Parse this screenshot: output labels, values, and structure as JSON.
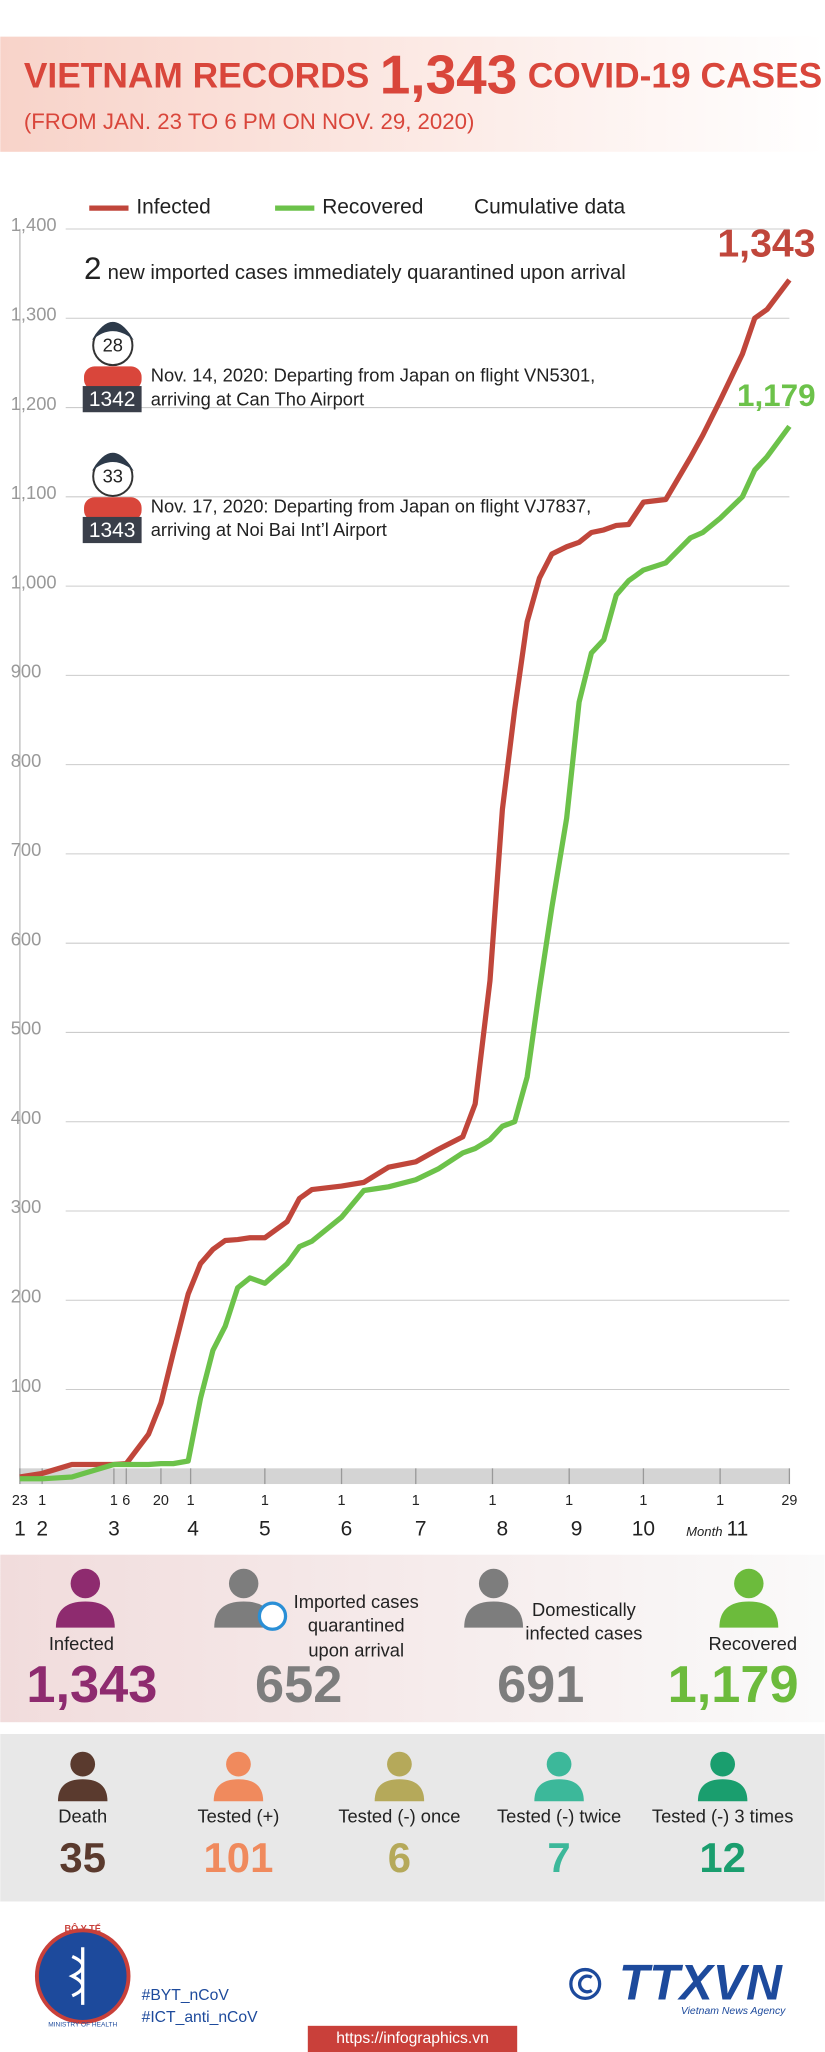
{
  "header": {
    "title_start": "VIETNAM RECORDS",
    "title_number": "1,343",
    "title_end": "COVID-19 CASES",
    "subtitle": "(FROM JAN. 23 TO 6 PM ON NOV. 29, 2020)"
  },
  "chart_data": {
    "type": "line",
    "legend_note": "Cumulative data",
    "x": [
      "2020-01-23",
      "2020-02-01",
      "2020-02-13",
      "2020-03-01",
      "2020-03-06",
      "2020-03-15",
      "2020-03-20",
      "2020-03-25",
      "2020-03-31",
      "2020-04-05",
      "2020-04-10",
      "2020-04-15",
      "2020-04-20",
      "2020-04-25",
      "2020-05-01",
      "2020-05-10",
      "2020-05-15",
      "2020-05-20",
      "2020-06-01",
      "2020-06-10",
      "2020-06-20",
      "2020-07-01",
      "2020-07-10",
      "2020-07-20",
      "2020-07-25",
      "2020-07-31",
      "2020-08-05",
      "2020-08-10",
      "2020-08-15",
      "2020-08-20",
      "2020-08-25",
      "2020-08-31",
      "2020-09-05",
      "2020-09-10",
      "2020-09-15",
      "2020-09-20",
      "2020-09-25",
      "2020-10-01",
      "2020-10-10",
      "2020-10-20",
      "2020-10-25",
      "2020-11-01",
      "2020-11-10",
      "2020-11-15",
      "2020-11-20",
      "2020-11-29"
    ],
    "series": [
      {
        "name": "Infected",
        "color": "#c0463b",
        "values": [
          2,
          6,
          16,
          16,
          17,
          50,
          85,
          141,
          207,
          241,
          257,
          267,
          268,
          270,
          270,
          288,
          314,
          324,
          328,
          332,
          349,
          355,
          369,
          383,
          420,
          558,
          750,
          862,
          960,
          1009,
          1036,
          1044,
          1049,
          1060,
          1063,
          1068,
          1069,
          1094,
          1097,
          1144,
          1169,
          1208,
          1260,
          1300,
          1310,
          1343
        ],
        "value_labels": [
          null,
          null,
          null,
          null,
          null,
          null,
          null,
          null,
          null,
          null,
          null,
          null,
          null,
          null,
          null,
          null,
          null,
          null,
          null,
          null,
          null,
          null,
          null,
          null,
          null,
          null,
          null,
          null,
          null,
          null,
          null,
          null,
          null,
          null,
          null,
          null,
          null,
          null,
          null,
          null,
          null,
          null,
          null,
          null,
          null,
          "1,343"
        ]
      },
      {
        "name": "Recovered",
        "color": "#6cc24a",
        "values": [
          0,
          0,
          2,
          16,
          16,
          16,
          17,
          17,
          20,
          90,
          144,
          171,
          214,
          225,
          219,
          241,
          260,
          266,
          293,
          323,
          327,
          335,
          347,
          365,
          370,
          380,
          395,
          400,
          450,
          548,
          640,
          740,
          870,
          925,
          940,
          990,
          1006,
          1018,
          1026,
          1054,
          1060,
          1076,
          1100,
          1130,
          1145,
          1179
        ],
        "value_labels": [
          null,
          null,
          null,
          null,
          null,
          null,
          null,
          null,
          null,
          null,
          null,
          null,
          null,
          null,
          null,
          null,
          null,
          null,
          null,
          null,
          null,
          null,
          null,
          null,
          null,
          null,
          null,
          null,
          null,
          null,
          null,
          null,
          null,
          null,
          null,
          null,
          null,
          null,
          null,
          null,
          null,
          null,
          null,
          null,
          null,
          "1,179"
        ]
      }
    ],
    "xlim": [
      "2020-01-23",
      "2020-11-29"
    ],
    "xticks": [
      {
        "value": "2020-01-23",
        "label": "23"
      },
      {
        "value": "2020-02-01",
        "label": "1"
      },
      {
        "value": "2020-03-01",
        "label": "1"
      },
      {
        "value": "2020-03-06",
        "label": "6"
      },
      {
        "value": "2020-03-20",
        "label": "20"
      },
      {
        "value": "2020-04-01",
        "label": "1"
      },
      {
        "value": "2020-05-01",
        "label": "1"
      },
      {
        "value": "2020-06-01",
        "label": "1"
      },
      {
        "value": "2020-07-01",
        "label": "1"
      },
      {
        "value": "2020-08-01",
        "label": "1"
      },
      {
        "value": "2020-09-01",
        "label": "1"
      },
      {
        "value": "2020-10-01",
        "label": "1"
      },
      {
        "value": "2020-11-01",
        "label": "1"
      },
      {
        "value": "2020-11-29",
        "label": "29"
      }
    ],
    "month_title": "Month",
    "month_ticks": [
      {
        "value": "2020-01-23",
        "label": "1"
      },
      {
        "value": "2020-02-01",
        "label": "2"
      },
      {
        "value": "2020-03-01",
        "label": "3"
      },
      {
        "value": "2020-04-02",
        "label": "4"
      },
      {
        "value": "2020-05-01",
        "label": "5"
      },
      {
        "value": "2020-06-03",
        "label": "6"
      },
      {
        "value": "2020-07-03",
        "label": "7"
      },
      {
        "value": "2020-08-05",
        "label": "8"
      },
      {
        "value": "2020-09-04",
        "label": "9"
      },
      {
        "value": "2020-10-01",
        "label": "10"
      },
      {
        "value": "2020-11-08",
        "label": "11"
      }
    ],
    "ylim": [
      0,
      1400
    ],
    "yticks": [
      100,
      200,
      300,
      400,
      500,
      600,
      700,
      800,
      900,
      {
        "value": 1000,
        "label": "1,000"
      },
      {
        "value": 1100,
        "label": "1,100"
      },
      {
        "value": 1200,
        "label": "1,200"
      },
      {
        "value": 1300,
        "label": "1,300"
      },
      {
        "value": 1400,
        "label": "1,400"
      }
    ],
    "grid": true
  },
  "note": {
    "count": "2",
    "text": "new imported cases immediately quarantined upon arrival",
    "cases": [
      {
        "patient": "28",
        "case": "1342",
        "lines": [
          "Nov. 14, 2020: Departing from Japan on flight VN5301,",
          "arriving at Can Tho Airport"
        ]
      },
      {
        "patient": "33",
        "case": "1343",
        "lines": [
          "Nov. 17, 2020: Departing from Japan on flight  VJ7837,",
          "arriving at Noi Bai Int’l Airport"
        ]
      }
    ]
  },
  "stats": {
    "row1": [
      {
        "label": [
          "Infected"
        ],
        "value": "1,343",
        "color": "#8e2b6f"
      },
      {
        "label": [
          "Imported cases",
          "quarantined",
          "upon arrival"
        ],
        "value": "652",
        "color": "#7d7d7d"
      },
      {
        "label": [
          "Domestically",
          "infected cases"
        ],
        "value": "691",
        "color": "#7d7d7d"
      },
      {
        "label": [
          "Recovered"
        ],
        "value": "1,179",
        "color": "#6cbb3c"
      }
    ],
    "row2": [
      {
        "label": "Death",
        "value": "35",
        "color": "#5a3a2e"
      },
      {
        "label": "Tested (+)",
        "value": "101",
        "color": "#f08a5d"
      },
      {
        "label": "Tested (-) once",
        "value": "6",
        "color": "#b5a95a"
      },
      {
        "label": "Tested (-) twice",
        "value": "7",
        "color": "#3cb89a"
      },
      {
        "label": "Tested (-) 3 times",
        "value": "12",
        "color": "#1a9e6e"
      }
    ]
  },
  "footer": {
    "logo_top": "BỘ Y TẾ",
    "logo_bottom": "MINISTRY OF HEALTH",
    "tags": [
      "#BYT_nCoV",
      "#ICT_anti_nCoV"
    ],
    "agency": "TTXVN",
    "agency_sub": "Vietnam News Agency",
    "url": "https://infographics.vn"
  }
}
